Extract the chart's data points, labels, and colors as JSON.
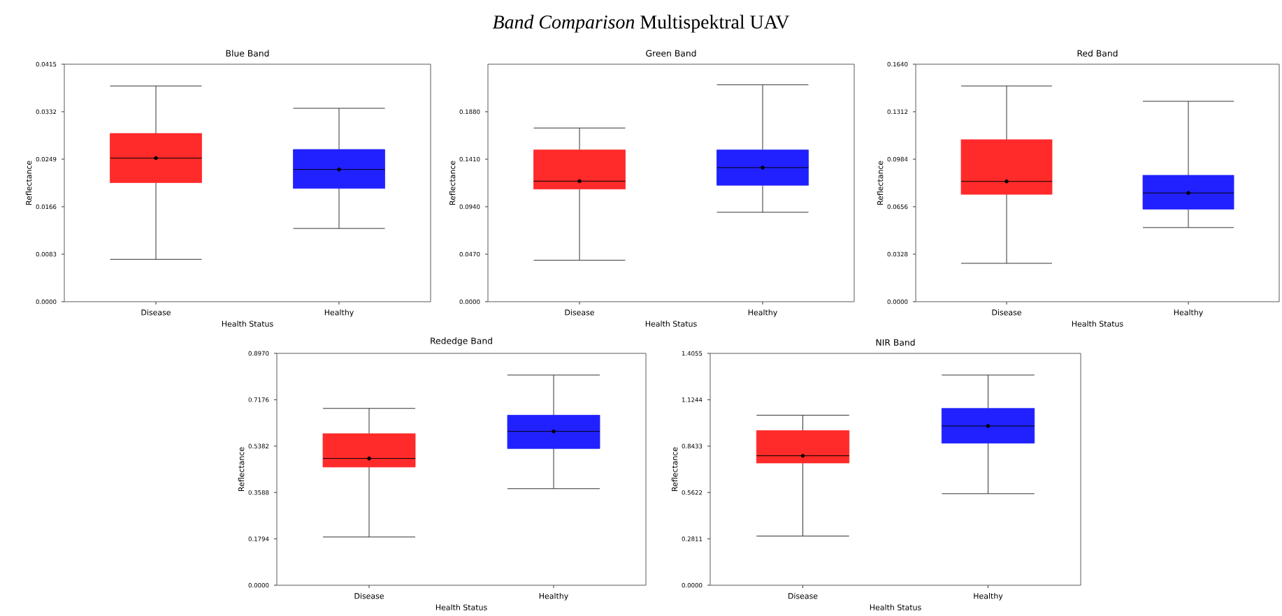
{
  "chart_data": [
    {
      "type": "other",
      "title": "*Band Comparison* Multispektral UAV"
    },
    {
      "type": "box",
      "title": "Blue Band",
      "xlabel": "Health Status",
      "ylabel": "Reflectance",
      "categories": [
        "Disease",
        "Healthy"
      ],
      "colors": [
        "#ff2a2a",
        "#2121ff"
      ],
      "boxes": [
        {
          "low": 0.0074,
          "q1": 0.0208,
          "median": 0.0251,
          "q3": 0.0294,
          "high": 0.0377,
          "mean": 0.0251
        },
        {
          "low": 0.0128,
          "q1": 0.0198,
          "median": 0.0231,
          "q3": 0.0266,
          "high": 0.0338,
          "mean": 0.0231
        }
      ],
      "ylim": [
        0,
        0.0415
      ],
      "yticks": [
        {
          "value": 0,
          "label": "0.0000"
        },
        {
          "value": 0.0083,
          "label": "0.0083"
        },
        {
          "value": 0.0166,
          "label": "0.0166"
        },
        {
          "value": 0.0249,
          "label": "0.0249"
        },
        {
          "value": 0.0332,
          "label": "0.0332"
        },
        {
          "value": 0.0415,
          "label": "0.0415"
        }
      ]
    },
    {
      "type": "box",
      "title": "Green Band",
      "xlabel": "Health Status",
      "ylabel": "Reflectance",
      "categories": [
        "Disease",
        "Healthy"
      ],
      "colors": [
        "#ff2a2a",
        "#2121ff"
      ],
      "boxes": [
        {
          "low": 0.041,
          "q1": 0.1115,
          "median": 0.1193,
          "q3": 0.1502,
          "high": 0.1719,
          "mean": 0.1193
        },
        {
          "low": 0.0885,
          "q1": 0.1152,
          "median": 0.1327,
          "q3": 0.1502,
          "high": 0.2147,
          "mean": 0.1327
        }
      ],
      "ylim": [
        0,
        0.235
      ],
      "yticks": [
        {
          "value": 0,
          "label": "0.0000"
        },
        {
          "value": 0.047,
          "label": "0.0470"
        },
        {
          "value": 0.094,
          "label": "0.0940"
        },
        {
          "value": 0.141,
          "label": "0.1410"
        },
        {
          "value": 0.188,
          "label": "0.1880"
        }
      ]
    },
    {
      "type": "box",
      "title": "Red Band",
      "xlabel": "Health Status",
      "ylabel": "Reflectance",
      "categories": [
        "Disease",
        "Healthy"
      ],
      "colors": [
        "#ff2a2a",
        "#2121ff"
      ],
      "boxes": [
        {
          "low": 0.0265,
          "q1": 0.0742,
          "median": 0.0831,
          "q3": 0.1119,
          "high": 0.149,
          "mean": 0.0831
        },
        {
          "low": 0.0512,
          "q1": 0.0639,
          "median": 0.0751,
          "q3": 0.0873,
          "high": 0.1384,
          "mean": 0.0751
        }
      ],
      "ylim": [
        0,
        0.164
      ],
      "yticks": [
        {
          "value": 0,
          "label": "0.0000"
        },
        {
          "value": 0.0328,
          "label": "0.0328"
        },
        {
          "value": 0.0656,
          "label": "0.0656"
        },
        {
          "value": 0.0984,
          "label": "0.0984"
        },
        {
          "value": 0.1312,
          "label": "0.1312"
        },
        {
          "value": 0.164,
          "label": "0.1640"
        }
      ]
    },
    {
      "type": "box",
      "title": "Rededge Band",
      "xlabel": "Health Status",
      "ylabel": "Reflectance",
      "categories": [
        "Disease",
        "Healthy"
      ],
      "colors": [
        "#ff2a2a",
        "#2121ff"
      ],
      "boxes": [
        {
          "low": 0.1867,
          "q1": 0.4572,
          "median": 0.4904,
          "q3": 0.5864,
          "high": 0.6841,
          "mean": 0.4904
        },
        {
          "low": 0.3735,
          "q1": 0.5288,
          "median": 0.5951,
          "q3": 0.6579,
          "high": 0.8132,
          "mean": 0.5951
        }
      ],
      "ylim": [
        0,
        0.897
      ],
      "yticks": [
        {
          "value": 0,
          "label": "0.0000"
        },
        {
          "value": 0.1794,
          "label": "0.1794"
        },
        {
          "value": 0.3588,
          "label": "0.3588"
        },
        {
          "value": 0.5382,
          "label": "0.5382"
        },
        {
          "value": 0.7176,
          "label": "0.7176"
        },
        {
          "value": 0.897,
          "label": "0.8970"
        }
      ]
    },
    {
      "type": "box",
      "title": "NIR Band",
      "xlabel": "Health Status",
      "ylabel": "Reflectance",
      "categories": [
        "Disease",
        "Healthy"
      ],
      "colors": [
        "#ff2a2a",
        "#2121ff"
      ],
      "boxes": [
        {
          "low": 0.2981,
          "q1": 0.741,
          "median": 0.7848,
          "q3": 0.9379,
          "high": 1.0309,
          "mean": 0.7848
        },
        {
          "low": 0.5551,
          "q1": 0.8613,
          "median": 0.9653,
          "q3": 1.0719,
          "high": 1.2742,
          "mean": 0.9653
        }
      ],
      "ylim": [
        0,
        1.4055
      ],
      "yticks": [
        {
          "value": 0,
          "label": "0.0000"
        },
        {
          "value": 0.2811,
          "label": "0.2811"
        },
        {
          "value": 0.5622,
          "label": "0.5622"
        },
        {
          "value": 0.8433,
          "label": "0.8433"
        },
        {
          "value": 1.1244,
          "label": "1.1244"
        },
        {
          "value": 1.4055,
          "label": "1.4055"
        }
      ]
    }
  ]
}
